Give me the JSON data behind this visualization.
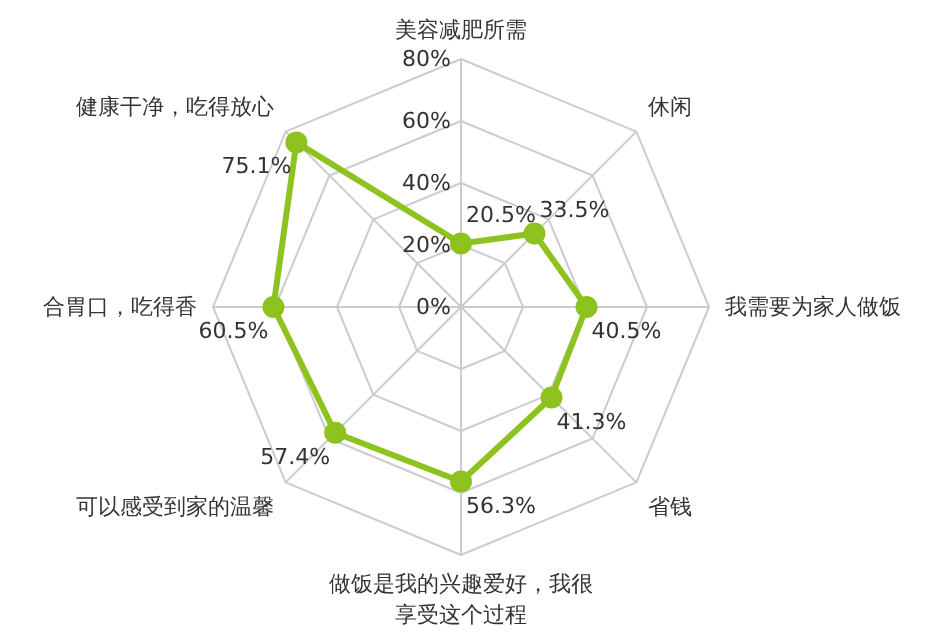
{
  "chart_data": {
    "type": "radar",
    "categories": [
      "美容减肥所需",
      "休闲",
      "我需要为家人做饭",
      "省钱",
      "做饭是我的兴趣爱好，我很享受这个过程",
      "可以感受到家的温馨",
      "合胃口，吃得香",
      "健康干净，吃得放心"
    ],
    "series": [
      {
        "color": "#8dc21f",
        "values": [
          20.5,
          33.5,
          40.5,
          41.3,
          56.3,
          57.4,
          60.5,
          75.1
        ],
        "value_labels": [
          "20.5%",
          "33.5%",
          "40.5%",
          "41.3%",
          "56.3%",
          "57.4%",
          "60.5%",
          "75.1%"
        ]
      }
    ],
    "ylim": [
      0,
      80
    ],
    "yticks": [
      {
        "value": 0,
        "label": "0%"
      },
      {
        "value": 20,
        "label": "20%"
      },
      {
        "value": 40,
        "label": "40%"
      },
      {
        "value": 60,
        "label": "60%"
      },
      {
        "value": 80,
        "label": "80%"
      }
    ],
    "grid": true,
    "marker": "circle"
  }
}
